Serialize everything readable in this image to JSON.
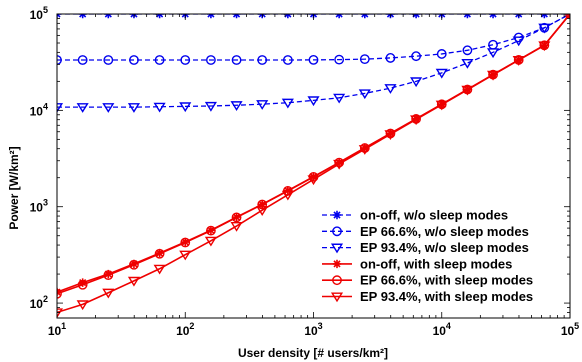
{
  "chart_data": {
    "type": "line",
    "xscale": "log",
    "yscale": "log",
    "xlim": [
      10,
      100000
    ],
    "ylim": [
      70,
      100000
    ],
    "xlabel": "User density [# users/km²]",
    "ylabel": "Power [W/km²]",
    "xticks": [
      {
        "value": 10,
        "base": "10",
        "exp": "1"
      },
      {
        "value": 100,
        "base": "10",
        "exp": "2"
      },
      {
        "value": 1000,
        "base": "10",
        "exp": "3"
      },
      {
        "value": 10000,
        "base": "10",
        "exp": "4"
      },
      {
        "value": 100000,
        "base": "10",
        "exp": "5"
      }
    ],
    "yticks": [
      {
        "value": 100,
        "base": "10",
        "exp": "2"
      },
      {
        "value": 1000,
        "base": "10",
        "exp": "3"
      },
      {
        "value": 10000,
        "base": "10",
        "exp": "4"
      },
      {
        "value": 100000,
        "base": "10",
        "exp": "5"
      }
    ],
    "grid": false,
    "legend_position": "bottom-right",
    "x": [
      10,
      15.85,
      25.12,
      39.81,
      63.1,
      100,
      158.5,
      251.2,
      398.1,
      631,
      1000,
      1585,
      2512,
      3981,
      6310,
      10000,
      15850,
      25120,
      39810,
      63100,
      100000
    ],
    "series": [
      {
        "name": "on-off, w/o sleep modes",
        "color": "#0000ee",
        "line": "dashed",
        "marker": "star",
        "y": [
          100000,
          100000,
          100000,
          100000,
          100000,
          100000,
          100000,
          100000,
          100000,
          100000,
          100000,
          100000,
          100000,
          100000,
          100000,
          100000,
          100000,
          100000,
          100000,
          100000,
          100000
        ]
      },
      {
        "name": "EP 66.6%, w/o sleep modes",
        "color": "#0000ee",
        "line": "dashed",
        "marker": "circle",
        "y": [
          33300,
          33300,
          33300,
          33300,
          33300,
          33300,
          33300,
          33300,
          33300,
          33300,
          33400,
          33600,
          34000,
          35000,
          36500,
          38500,
          42000,
          48000,
          57000,
          72000,
          100000
        ]
      },
      {
        "name": "EP 93.4%, w/o sleep modes",
        "color": "#0000ee",
        "line": "dashed",
        "marker": "triangle-down",
        "y": [
          10800,
          10800,
          10800,
          10800,
          10900,
          11000,
          11100,
          11300,
          11600,
          12000,
          12700,
          13500,
          15000,
          17000,
          20000,
          24500,
          31000,
          40000,
          53000,
          72000,
          100000
        ]
      },
      {
        "name": "on-off, with sleep modes",
        "color": "#ee0000",
        "line": "solid",
        "marker": "star",
        "y": [
          130,
          163,
          200,
          255,
          330,
          430,
          570,
          780,
          1060,
          1470,
          2050,
          2880,
          4080,
          5770,
          8180,
          11600,
          16500,
          23500,
          33400,
          47400,
          100000
        ]
      },
      {
        "name": "EP 66.6%, with sleep modes",
        "color": "#ee0000",
        "line": "solid",
        "marker": "circle",
        "y": [
          125,
          155,
          195,
          250,
          325,
          425,
          565,
          775,
          1055,
          1460,
          2040,
          2870,
          4060,
          5750,
          8150,
          11550,
          16450,
          23450,
          33350,
          47350,
          100000
        ]
      },
      {
        "name": "EP 93.4%, with sleep modes",
        "color": "#ee0000",
        "line": "solid",
        "marker": "triangle-down",
        "y": [
          80,
          97,
          128,
          170,
          227,
          318,
          443,
          630,
          920,
          1330,
          1920,
          2780,
          3960,
          5650,
          8050,
          11450,
          16350,
          23350,
          33250,
          47250,
          100000
        ]
      }
    ]
  }
}
